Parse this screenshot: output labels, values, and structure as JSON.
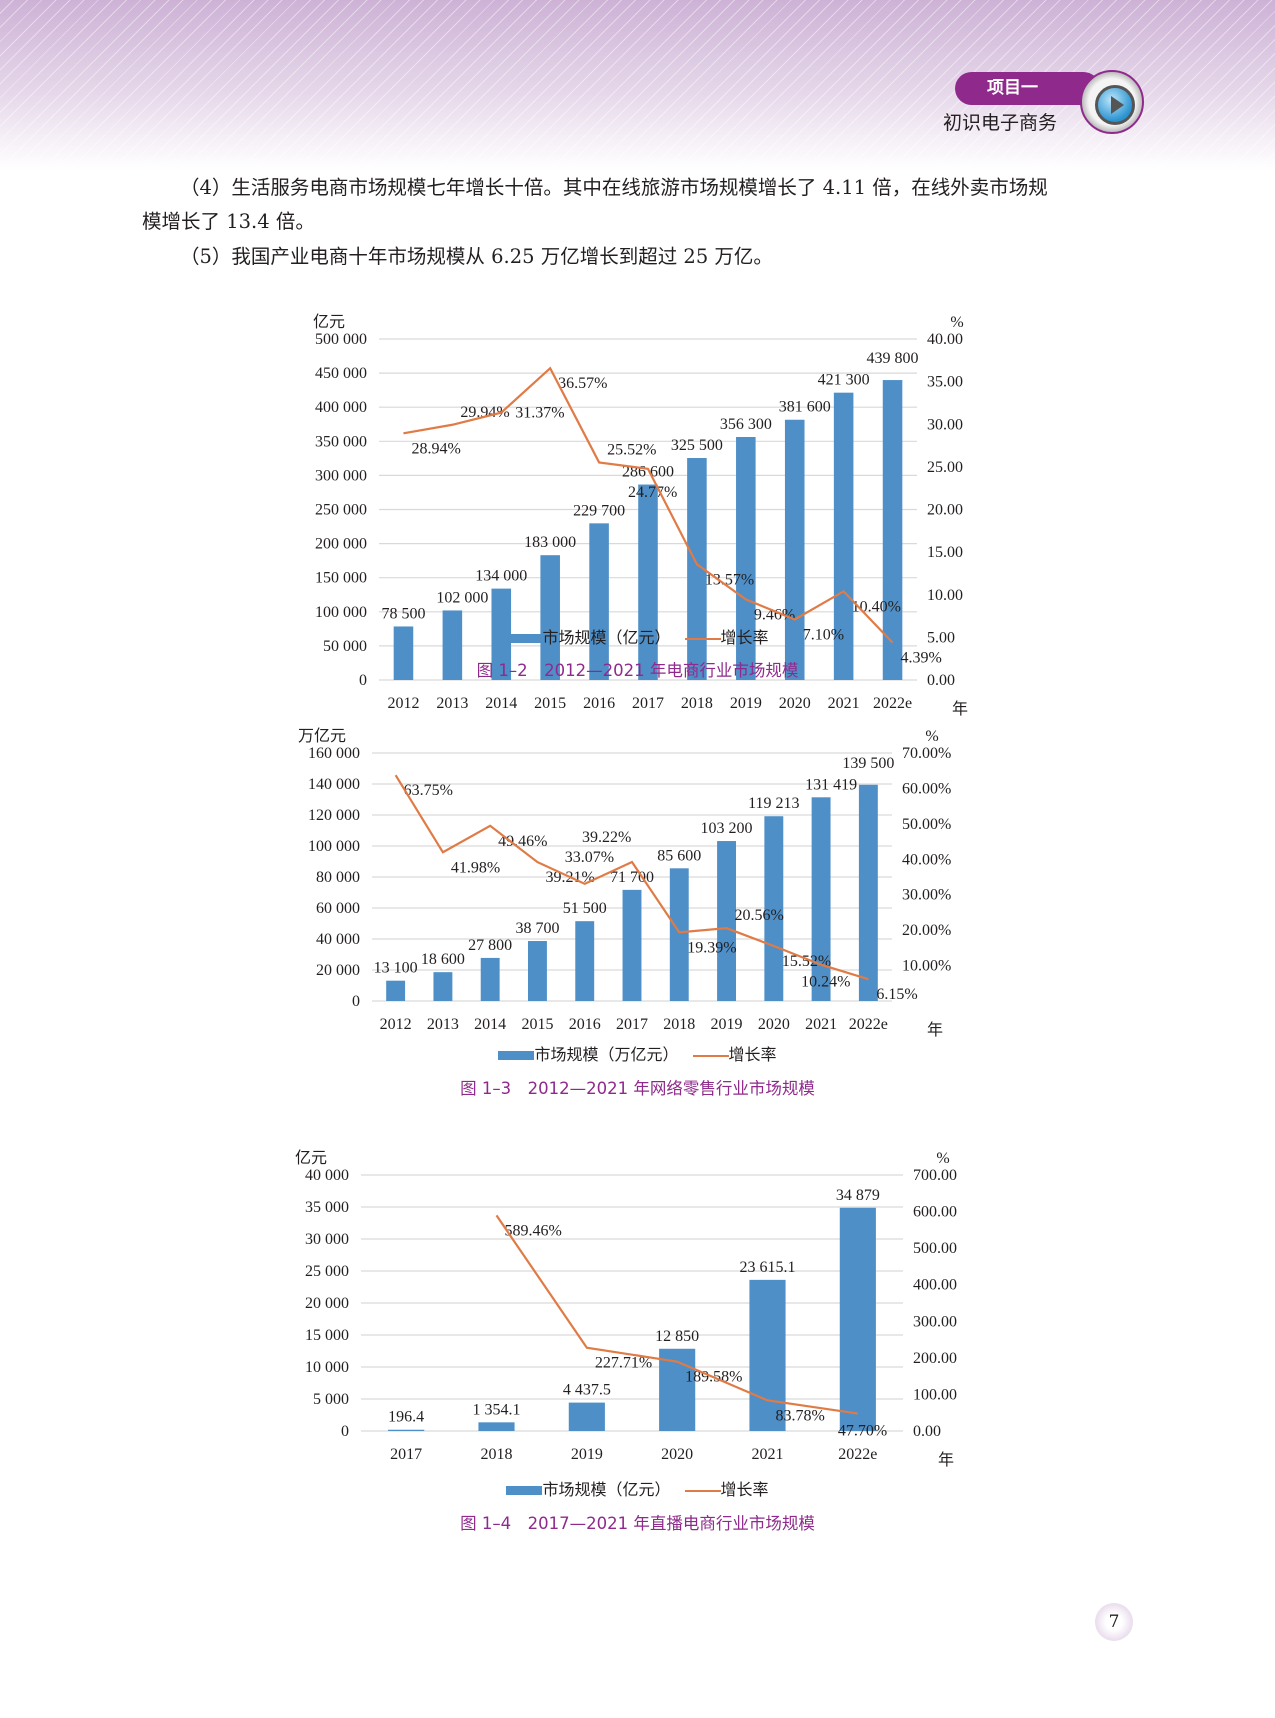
{
  "header": {
    "project_label": "项目一",
    "project_title": "初识电子商务"
  },
  "paragraphs": [
    "（4）生活服务电商市场规模七年增长十倍。其中在线旅游市场规模增长了 4.11 倍，在线外卖市场规",
    "模增长了 13.4 倍。",
    "（5）我国产业电商十年市场规模从 6.25 万亿增长到超过 25 万亿。"
  ],
  "colors": {
    "bar": "#4f8fc7",
    "line": "#e07b45",
    "caption": "#8f2a8c",
    "grid": "#d9d9d9"
  },
  "chart_data": [
    {
      "type": "bar",
      "title": "图 1–2　2012—2021 年电商行业市场规模",
      "ylabel": "亿元",
      "y2label": "%",
      "xlabel": "年",
      "categories": [
        "2012",
        "2013",
        "2014",
        "2015",
        "2016",
        "2017",
        "2018",
        "2019",
        "2020",
        "2021",
        "2022e"
      ],
      "ylim": [
        0,
        500000
      ],
      "yticks": [
        "0",
        "50 000",
        "100 000",
        "150 000",
        "200 000",
        "250 000",
        "300 000",
        "350 000",
        "400 000",
        "450 000",
        "500 000"
      ],
      "y2lim": [
        0,
        40
      ],
      "y2ticks": [
        "0.00",
        "5.00",
        "10.00",
        "15.00",
        "20.00",
        "25.00",
        "30.00",
        "35.00",
        "40.00"
      ],
      "series": [
        {
          "name": "市场规模（亿元）",
          "kind": "bar",
          "values": [
            78500,
            102000,
            134000,
            183000,
            229700,
            286600,
            325500,
            356300,
            381600,
            421300,
            439800
          ],
          "labels": [
            "78 500",
            "102 000",
            "134 000",
            "183 000",
            "229 700",
            "286 600",
            "325 500",
            "356 300",
            "381 600",
            "421 300",
            "439 800"
          ]
        },
        {
          "name": "增长率",
          "kind": "line",
          "axis": "right",
          "values": [
            28.94,
            29.94,
            31.37,
            36.57,
            25.52,
            24.77,
            13.57,
            9.46,
            7.1,
            10.4,
            4.39
          ],
          "labels": [
            "28.94%",
            "29.94%",
            "31.37%",
            "36.57%",
            "25.52%",
            "24.77%",
            "13.57%",
            "9.46%",
            "7.10%",
            "10.40%",
            "4.39%"
          ]
        }
      ]
    },
    {
      "type": "bar",
      "title": "图 1–3　2012—2021 年网络零售行业市场规模",
      "ylabel": "万亿元",
      "y2label": "%",
      "xlabel": "年",
      "categories": [
        "2012",
        "2013",
        "2014",
        "2015",
        "2016",
        "2017",
        "2018",
        "2019",
        "2020",
        "2021",
        "2022e"
      ],
      "ylim": [
        0,
        160000
      ],
      "yticks": [
        "0",
        "20 000",
        "40 000",
        "60 000",
        "80 000",
        "100 000",
        "120 000",
        "140 000",
        "160 000"
      ],
      "y2lim": [
        0,
        70
      ],
      "y2ticks": [
        "",
        "10.00%",
        "20.00%",
        "30.00%",
        "40.00%",
        "50.00%",
        "60.00%",
        "70.00%"
      ],
      "series": [
        {
          "name": "市场规模（万亿元）",
          "kind": "bar",
          "values": [
            13100,
            18600,
            27800,
            38700,
            51500,
            71700,
            85600,
            103200,
            119213,
            131419,
            139500
          ],
          "labels": [
            "13 100",
            "18 600",
            "27 800",
            "38 700",
            "51 500",
            "71 700",
            "85 600",
            "103 200",
            "119 213",
            "131 419",
            "139 500"
          ]
        },
        {
          "name": "增长率",
          "kind": "line",
          "axis": "right",
          "values": [
            63.75,
            41.98,
            49.46,
            39.21,
            33.07,
            39.22,
            19.39,
            20.56,
            15.52,
            10.24,
            6.15
          ],
          "labels": [
            "63.75%",
            "41.98%",
            "49.46%",
            "39.21%",
            "33.07%",
            "39.22%",
            "19.39%",
            "20.56%",
            "15.52%",
            "10.24%",
            "6.15%"
          ]
        }
      ]
    },
    {
      "type": "bar",
      "title": "图 1–4　2017—2021 年直播电商行业市场规模",
      "ylabel": "亿元",
      "y2label": "%",
      "xlabel": "年",
      "categories": [
        "2017",
        "2018",
        "2019",
        "2020",
        "2021",
        "2022e"
      ],
      "ylim": [
        0,
        40000
      ],
      "yticks": [
        "0",
        "5 000",
        "10 000",
        "15 000",
        "20 000",
        "25 000",
        "30 000",
        "35 000",
        "40 000"
      ],
      "y2lim": [
        0,
        700
      ],
      "y2ticks": [
        "0.00",
        "100.00",
        "200.00",
        "300.00",
        "400.00",
        "500.00",
        "600.00",
        "700.00"
      ],
      "series": [
        {
          "name": "市场规模（亿元）",
          "kind": "bar",
          "values": [
            196.4,
            1354.1,
            4437.5,
            12850,
            23615.1,
            34879
          ],
          "labels": [
            "196.4",
            "1 354.1",
            "4 437.5",
            "12 850",
            "23 615.1",
            "34 879"
          ]
        },
        {
          "name": "增长率",
          "kind": "line",
          "axis": "right",
          "values": [
            null,
            589.46,
            227.71,
            189.58,
            83.78,
            47.7
          ],
          "labels": [
            "",
            "589.46%",
            "227.71%",
            "189.58%",
            "83.78%",
            "47.70%"
          ]
        }
      ]
    }
  ],
  "page_number": "7"
}
